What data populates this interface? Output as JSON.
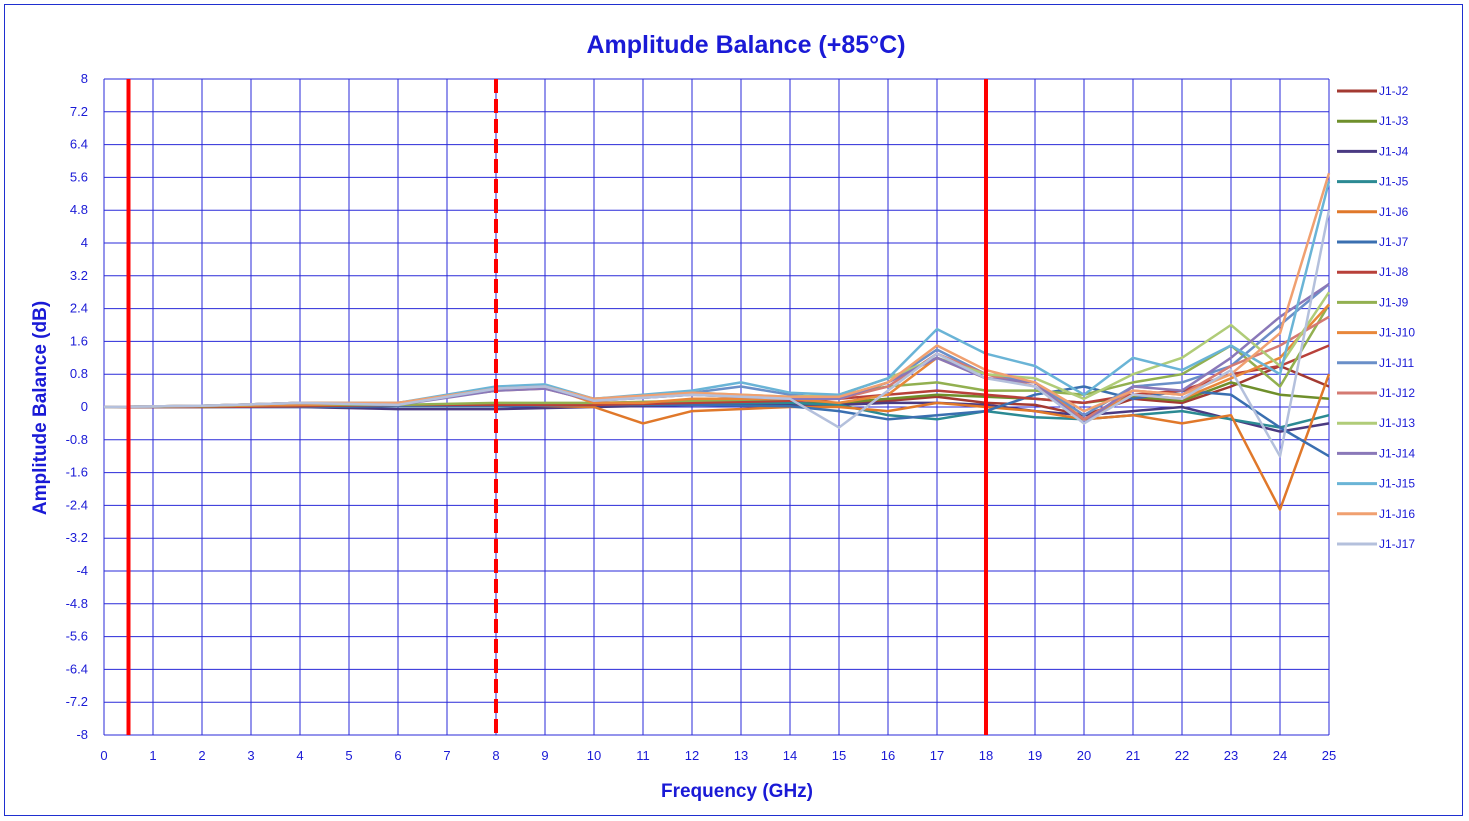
{
  "chart_data": {
    "type": "line",
    "title": "Amplitude Balance (+85°C)",
    "xlabel": "Frequency (GHz)",
    "ylabel": "Amplitude Balance (dB)",
    "xlim": [
      0,
      25
    ],
    "ylim": [
      -8,
      8
    ],
    "x_ticks": [
      "0",
      "1",
      "2",
      "3",
      "4",
      "5",
      "6",
      "7",
      "8",
      "9",
      "10",
      "11",
      "12",
      "13",
      "14",
      "15",
      "16",
      "17",
      "18",
      "19",
      "20",
      "21",
      "22",
      "23",
      "24",
      "25"
    ],
    "y_ticks": [
      "8",
      "7.2",
      "6.4",
      "5.6",
      "4.8",
      "4",
      "3.2",
      "2.4",
      "1.6",
      "0.8",
      "0",
      "-0.8",
      "-1.6",
      "-2.4",
      "-3.2",
      "-4",
      "-4.8",
      "-5.6",
      "-6.4",
      "-7.2",
      "-8"
    ],
    "grid": true,
    "legend_position": "right",
    "reference_lines": [
      {
        "x": 0.5,
        "style": "solid",
        "color": "#ff0000"
      },
      {
        "x": 8,
        "style": "dashed",
        "color": "#ff0000"
      },
      {
        "x": 18,
        "style": "solid",
        "color": "#ff0000"
      }
    ],
    "series": [
      {
        "name": "J1-J2",
        "color": "#a33a32",
        "x": [
          0,
          2,
          4,
          6,
          8,
          10,
          12,
          14,
          15,
          16,
          17,
          18,
          19,
          20,
          21,
          22,
          23,
          24,
          25
        ],
        "values": [
          0,
          0.02,
          0.03,
          0.05,
          0.06,
          0.08,
          0.05,
          0.1,
          0.1,
          0.15,
          0.25,
          0.1,
          0.05,
          -0.2,
          0.2,
          0.1,
          0.5,
          1.0,
          0.5
        ]
      },
      {
        "name": "J1-J3",
        "color": "#6f8f2b",
        "x": [
          0,
          2,
          4,
          6,
          8,
          10,
          12,
          14,
          15,
          16,
          17,
          18,
          19,
          20,
          21,
          22,
          23,
          24,
          25
        ],
        "values": [
          0,
          0.01,
          0.02,
          0.02,
          0.03,
          0.05,
          0.05,
          0.08,
          0.1,
          0.2,
          0.3,
          0.25,
          0.2,
          0.1,
          0.25,
          0.15,
          0.6,
          0.3,
          0.2
        ]
      },
      {
        "name": "J1-J4",
        "color": "#4a3a82",
        "x": [
          0,
          2,
          4,
          6,
          8,
          10,
          12,
          14,
          15,
          16,
          17,
          18,
          19,
          20,
          21,
          22,
          23,
          24,
          25
        ],
        "values": [
          0,
          0,
          0,
          -0.05,
          -0.05,
          0,
          0.05,
          0.05,
          0.05,
          0.1,
          0.1,
          0.05,
          -0.1,
          -0.2,
          -0.1,
          0,
          -0.3,
          -0.6,
          -0.4
        ]
      },
      {
        "name": "J1-J5",
        "color": "#2b8a93",
        "x": [
          0,
          2,
          4,
          6,
          8,
          10,
          12,
          14,
          15,
          16,
          17,
          18,
          19,
          20,
          21,
          22,
          23,
          24,
          25
        ],
        "values": [
          0,
          0,
          0.02,
          0.02,
          0.02,
          0.05,
          0.1,
          0.1,
          0.05,
          -0.2,
          -0.3,
          -0.1,
          -0.25,
          -0.3,
          -0.2,
          -0.1,
          -0.3,
          -0.5,
          -0.2
        ]
      },
      {
        "name": "J1-J6",
        "color": "#e0782a",
        "x": [
          0,
          2,
          4,
          6,
          8,
          10,
          11,
          12,
          14,
          15,
          16,
          17,
          18,
          19,
          20,
          21,
          22,
          23,
          24,
          25
        ],
        "values": [
          0,
          0,
          0.02,
          0.05,
          0.05,
          0,
          -0.4,
          -0.1,
          0,
          0,
          -0.1,
          0.1,
          0,
          -0.1,
          -0.3,
          -0.2,
          -0.4,
          -0.2,
          -2.5,
          0.8
        ]
      },
      {
        "name": "J1-J7",
        "color": "#3a6fb0",
        "x": [
          0,
          2,
          4,
          6,
          8,
          10,
          12,
          14,
          15,
          16,
          17,
          18,
          19,
          20,
          21,
          22,
          23,
          24,
          25
        ],
        "values": [
          0,
          0,
          0,
          0.02,
          0.02,
          0.05,
          0.05,
          0.02,
          -0.1,
          -0.3,
          -0.2,
          -0.1,
          0.3,
          0.5,
          0.2,
          0.4,
          0.3,
          -0.5,
          -1.2
        ]
      },
      {
        "name": "J1-J8",
        "color": "#b8403a",
        "x": [
          0,
          2,
          4,
          6,
          8,
          10,
          12,
          14,
          15,
          16,
          17,
          18,
          19,
          20,
          21,
          22,
          23,
          24,
          25
        ],
        "values": [
          0,
          0,
          0.02,
          0.05,
          0.05,
          0.05,
          0.1,
          0.15,
          0.2,
          0.3,
          0.4,
          0.3,
          0.2,
          0.1,
          0.3,
          0.4,
          0.8,
          1.0,
          1.5
        ]
      },
      {
        "name": "J1-J9",
        "color": "#92b050",
        "x": [
          0,
          2,
          4,
          6,
          8,
          10,
          12,
          14,
          15,
          16,
          17,
          18,
          19,
          20,
          21,
          22,
          23,
          24,
          25
        ],
        "values": [
          0,
          0.02,
          0.05,
          0.05,
          0.1,
          0.1,
          0.15,
          0.2,
          0.3,
          0.5,
          0.6,
          0.4,
          0.4,
          0.3,
          0.6,
          0.8,
          1.5,
          0.5,
          2.5
        ]
      },
      {
        "name": "J1-J10",
        "color": "#e8873a",
        "x": [
          0,
          2,
          4,
          6,
          8,
          9,
          10,
          11,
          12,
          14,
          15,
          16,
          17,
          18,
          19,
          20,
          21,
          22,
          23,
          24,
          25
        ],
        "values": [
          0,
          0.03,
          0.05,
          0.1,
          0.4,
          0.5,
          0.1,
          0.1,
          0.2,
          0.2,
          0.1,
          0.3,
          1.2,
          0.7,
          0.6,
          -0.3,
          0.3,
          0.2,
          0.7,
          1.2,
          2.5
        ]
      },
      {
        "name": "J1-J11",
        "color": "#6a8fc8",
        "x": [
          0,
          2,
          4,
          6,
          8,
          9,
          10,
          12,
          13,
          14,
          15,
          16,
          17,
          18,
          19,
          20,
          21,
          22,
          23,
          24,
          25
        ],
        "values": [
          0,
          0.03,
          0.1,
          0.1,
          0.45,
          0.5,
          0.2,
          0.35,
          0.5,
          0.3,
          0.2,
          0.6,
          1.4,
          0.8,
          0.6,
          -0.2,
          0.5,
          0.6,
          1.0,
          2.0,
          3.0
        ]
      },
      {
        "name": "J1-J12",
        "color": "#d47a72",
        "x": [
          0,
          2,
          4,
          6,
          8,
          9,
          10,
          12,
          14,
          15,
          16,
          17,
          18,
          19,
          20,
          21,
          22,
          23,
          24,
          25
        ],
        "values": [
          0,
          0.03,
          0.1,
          0.1,
          0.4,
          0.45,
          0.15,
          0.3,
          0.2,
          0.2,
          0.5,
          1.3,
          0.8,
          0.5,
          -0.3,
          0.4,
          0.3,
          1.0,
          1.5,
          2.2
        ]
      },
      {
        "name": "J1-J13",
        "color": "#b0cc78",
        "x": [
          0,
          2,
          4,
          6,
          8,
          9,
          10,
          12,
          14,
          15,
          16,
          17,
          18,
          19,
          20,
          21,
          22,
          23,
          24,
          25
        ],
        "values": [
          0,
          0.03,
          0.1,
          0.1,
          0.4,
          0.5,
          0.2,
          0.35,
          0.25,
          0.3,
          0.7,
          1.2,
          0.8,
          0.7,
          0.2,
          0.8,
          1.2,
          2.0,
          1.0,
          2.8
        ]
      },
      {
        "name": "J1-J14",
        "color": "#8a78b8",
        "x": [
          0,
          2,
          4,
          6,
          8,
          9,
          10,
          12,
          14,
          15,
          16,
          17,
          18,
          19,
          20,
          21,
          22,
          23,
          24,
          25
        ],
        "values": [
          0,
          0.03,
          0.1,
          0.05,
          0.4,
          0.45,
          0.15,
          0.3,
          0.2,
          0.2,
          0.6,
          1.2,
          0.7,
          0.6,
          -0.4,
          0.5,
          0.4,
          1.2,
          2.2,
          3.0
        ]
      },
      {
        "name": "J1-J15",
        "color": "#6ab4d6",
        "x": [
          0,
          2,
          4,
          6,
          8,
          9,
          10,
          12,
          13,
          14,
          15,
          16,
          17,
          18,
          19,
          20,
          21,
          22,
          23,
          24,
          25
        ],
        "values": [
          0,
          0.03,
          0.1,
          0.1,
          0.5,
          0.55,
          0.2,
          0.4,
          0.6,
          0.35,
          0.3,
          0.7,
          1.9,
          1.3,
          1.0,
          0.3,
          1.2,
          0.9,
          1.5,
          0.8,
          5.5
        ]
      },
      {
        "name": "J1-J16",
        "color": "#f0a070",
        "x": [
          0,
          2,
          4,
          6,
          8,
          9,
          10,
          12,
          14,
          15,
          16,
          17,
          18,
          19,
          20,
          21,
          22,
          23,
          24,
          25
        ],
        "values": [
          0,
          0.03,
          0.1,
          0.1,
          0.45,
          0.5,
          0.2,
          0.35,
          0.25,
          0.25,
          0.6,
          1.5,
          0.9,
          0.6,
          -0.1,
          0.4,
          0.3,
          0.8,
          1.8,
          5.7
        ]
      },
      {
        "name": "J1-J17",
        "color": "#b4c0dc",
        "x": [
          0,
          2,
          4,
          6,
          8,
          9,
          10,
          12,
          14,
          15,
          16,
          17,
          18,
          19,
          20,
          21,
          22,
          23,
          24,
          25
        ],
        "values": [
          0,
          0.03,
          0.1,
          0.05,
          0.45,
          0.5,
          0.15,
          0.3,
          0.2,
          -0.5,
          0.4,
          1.3,
          0.7,
          0.5,
          -0.4,
          0.3,
          0.2,
          0.9,
          -1.2,
          4.8
        ]
      }
    ]
  }
}
